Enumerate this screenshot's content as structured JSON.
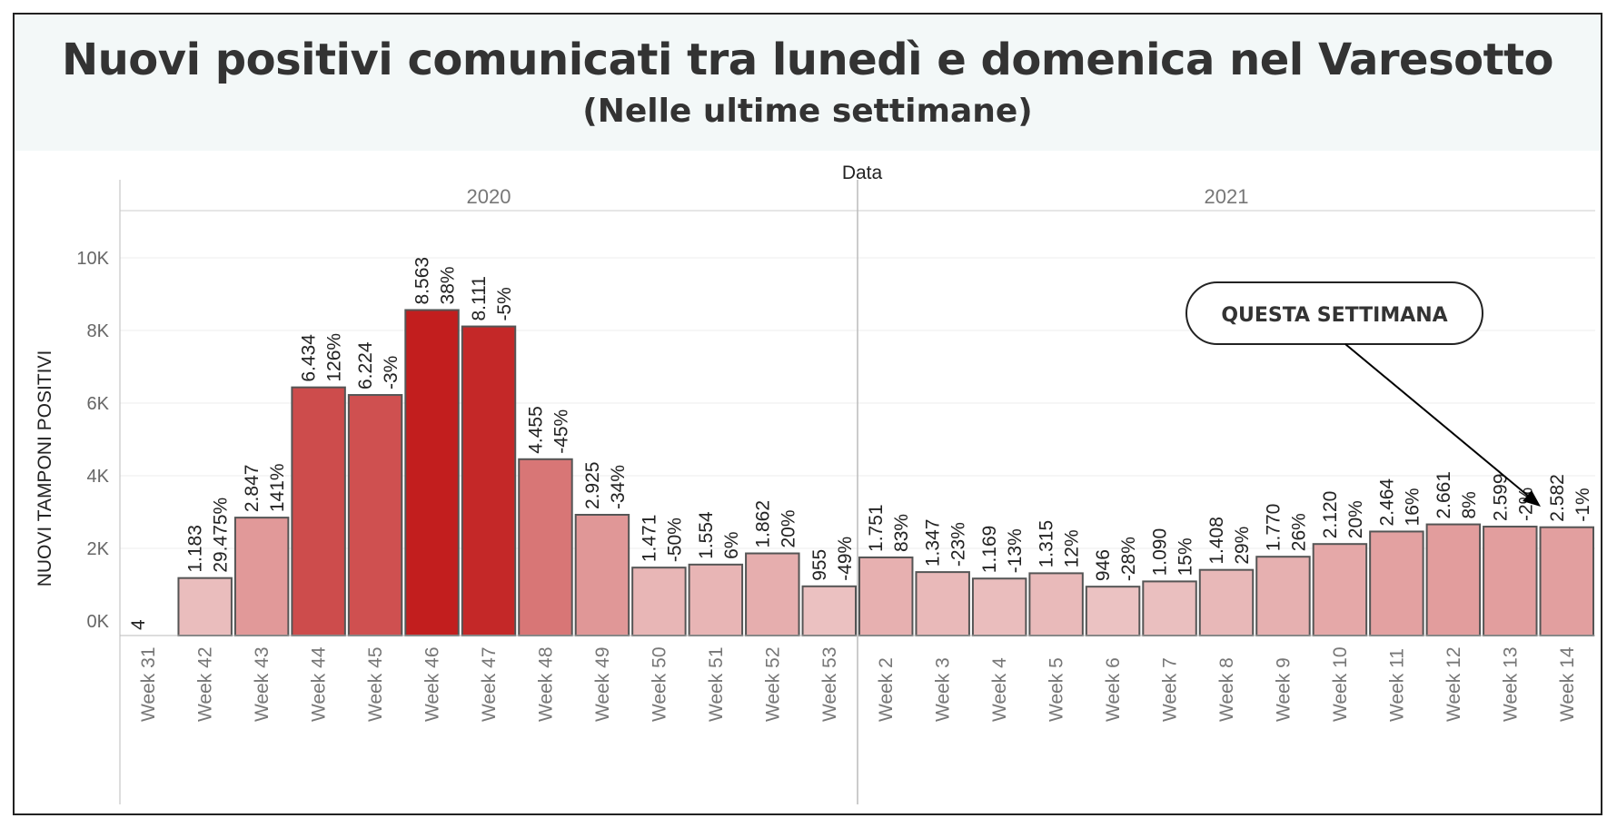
{
  "title": "Nuovi positivi comunicati tra lunedì e domenica nel Varesotto",
  "subtitle": "(Nelle ultime settimane)",
  "annotation": "QUESTA SETTIMANA",
  "chart_data": {
    "type": "bar",
    "top_axis_title": "Data",
    "ylabel": "NUOVI TAMPONI POSITIVI",
    "ylim": [
      0,
      11500
    ],
    "yticks": [
      {
        "value": 0,
        "label": "0K"
      },
      {
        "value": 2000,
        "label": "2K"
      },
      {
        "value": 4000,
        "label": "4K"
      },
      {
        "value": 6000,
        "label": "6K"
      },
      {
        "value": 8000,
        "label": "8K"
      },
      {
        "value": 10000,
        "label": "10K"
      }
    ],
    "grid": true,
    "panels": [
      {
        "year": "2020",
        "categories": [
          "Week 31",
          "Week 42",
          "Week 43",
          "Week 44",
          "Week 45",
          "Week 46",
          "Week 47",
          "Week 48",
          "Week 49",
          "Week 50",
          "Week 51",
          "Week 52",
          "Week 53"
        ]
      },
      {
        "year": "2021",
        "categories": [
          "Week 2",
          "Week 3",
          "Week 4",
          "Week 5",
          "Week 6",
          "Week 7",
          "Week 8",
          "Week 9",
          "Week 10",
          "Week 11",
          "Week 12",
          "Week 13",
          "Week 14"
        ]
      }
    ],
    "values": [
      4,
      1183,
      2847,
      6434,
      6224,
      8563,
      8111,
      4455,
      2925,
      1471,
      1554,
      1862,
      955,
      1751,
      1347,
      1169,
      1315,
      946,
      1090,
      1408,
      1770,
      2120,
      2464,
      2661,
      2599,
      2582
    ],
    "value_labels": [
      "4",
      "1.183",
      "2.847",
      "6.434",
      "6.224",
      "8.563",
      "8.111",
      "4.455",
      "2.925",
      "1.471",
      "1.554",
      "1.862",
      "955",
      "1.751",
      "1.347",
      "1.169",
      "1.315",
      "946",
      "1.090",
      "1.408",
      "1.770",
      "2.120",
      "2.464",
      "2.661",
      "2.599",
      "2.582"
    ],
    "pct_labels": [
      "",
      "29.475%",
      "141%",
      "126%",
      "-3%",
      "38%",
      "-5%",
      "-45%",
      "-34%",
      "-50%",
      "6%",
      "20%",
      "-49%",
      "83%",
      "-23%",
      "-13%",
      "12%",
      "-28%",
      "15%",
      "29%",
      "26%",
      "20%",
      "16%",
      "8%",
      "-2%",
      "-1%"
    ],
    "color_scale": {
      "low": "#f0d6d6",
      "high": "#c21e1e"
    }
  }
}
